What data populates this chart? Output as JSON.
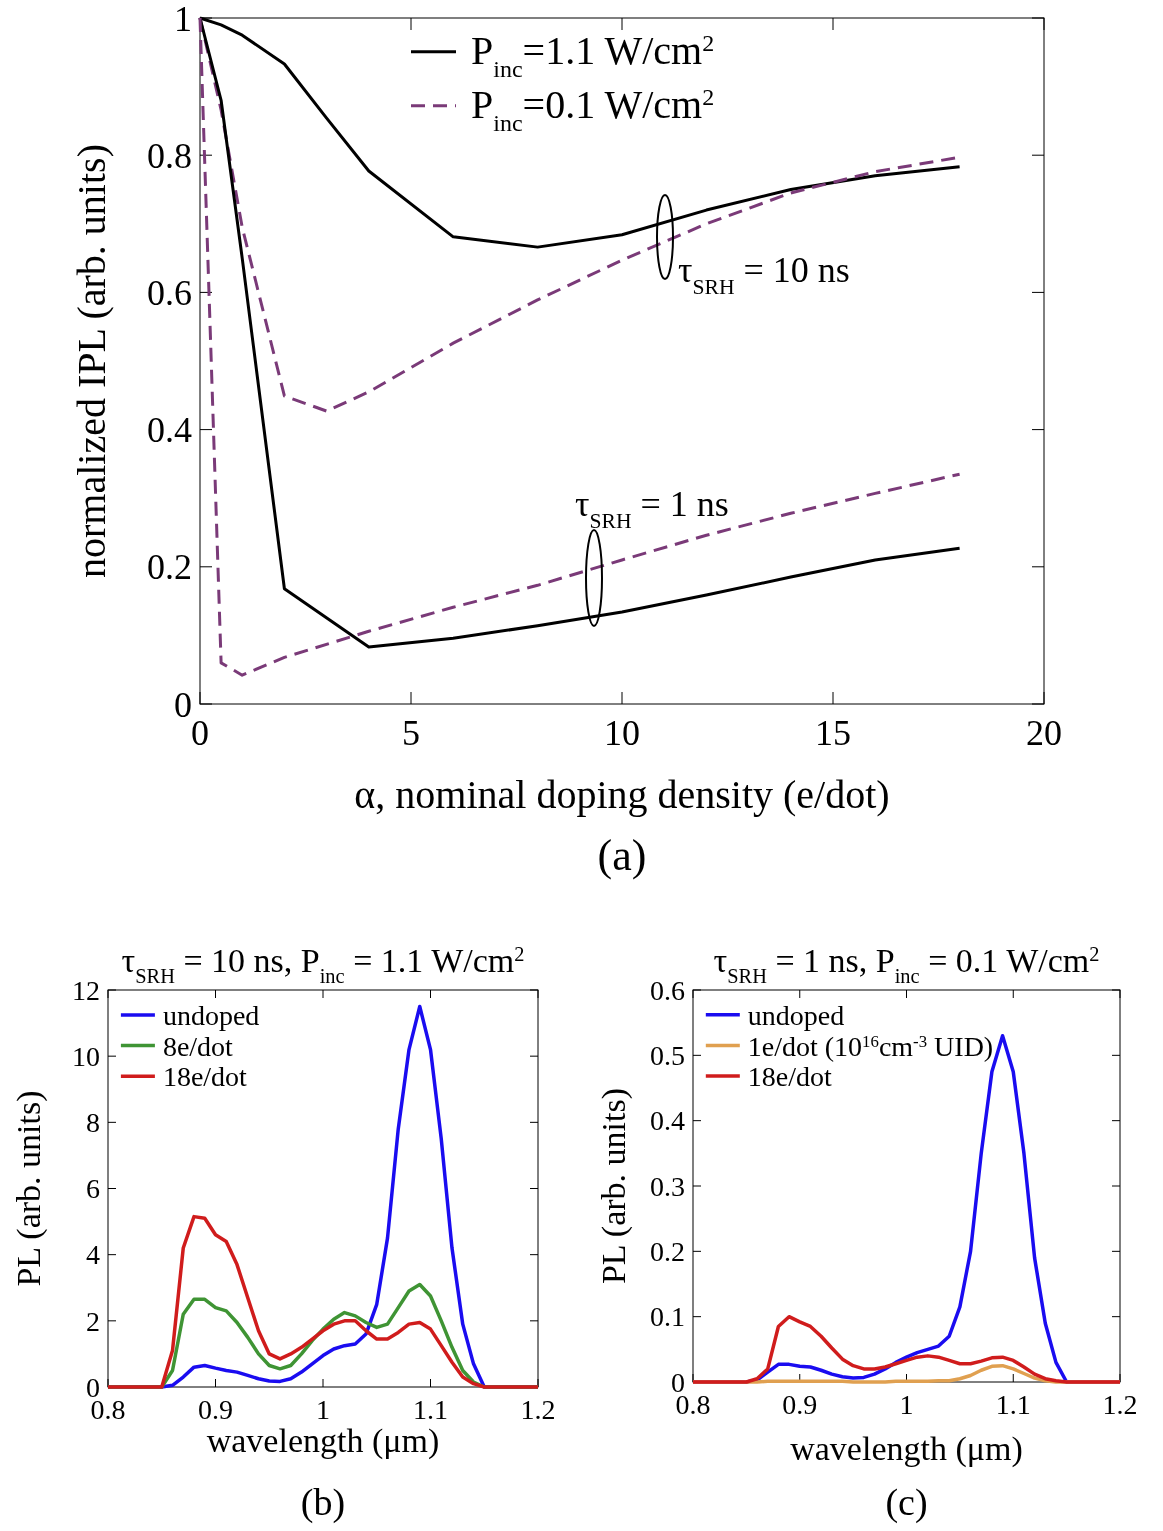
{
  "chart_data": [
    {
      "type": "line",
      "xlabel": "α, nominal doping density (e/dot)",
      "ylabel": "normalized IPL (arb. units)",
      "xlim": [
        0,
        20
      ],
      "ylim": [
        0,
        1
      ],
      "xticks": [
        0,
        5,
        10,
        15,
        20
      ],
      "yticks": [
        0,
        0.2,
        0.4,
        0.6,
        0.8,
        1
      ],
      "grid": false,
      "legend": "top",
      "annotations": [
        "τ$_{SRH}$ = 10 ns",
        "τ$_{SRH}$ = 1 ns",
        "(a)"
      ],
      "series": [
        {
          "name": "P$_{inc}$=1.1 W/cm$^{2}$",
          "color": "#000000",
          "line_style": "solid",
          "x": [
            0,
            0.5,
            1,
            2,
            3,
            4,
            6,
            8,
            10,
            12,
            14,
            16,
            18
          ],
          "values": [
            1,
            0.99,
            0.975,
            0.933,
            0.854,
            0.777,
            0.681,
            0.666,
            0.684,
            0.72,
            0.75,
            0.77,
            0.783
          ]
        },
        {
          "name": "P$_{inc}$=0.1 W/cm$^{2}$",
          "color": "#7a3a78",
          "line_style": "dashed",
          "x": [
            0,
            0.5,
            1,
            2,
            3,
            4,
            6,
            8,
            10,
            12,
            14,
            16,
            18
          ],
          "values": [
            1,
            0.866,
            0.695,
            0.449,
            0.427,
            0.455,
            0.526,
            0.589,
            0.647,
            0.7,
            0.745,
            0.776,
            0.797
          ]
        },
        {
          "color": "#000000",
          "line_style": "solid",
          "x": [
            0,
            0.5,
            1,
            2,
            4,
            6,
            8,
            10,
            12,
            14,
            16,
            18
          ],
          "values": [
            1,
            0.88,
            0.65,
            0.168,
            0.083,
            0.096,
            0.114,
            0.134,
            0.159,
            0.185,
            0.21,
            0.227
          ]
        },
        {
          "color": "#7a3a78",
          "line_style": "dashed",
          "x": [
            0,
            0.5,
            1,
            2,
            4,
            6,
            8,
            10,
            12,
            14,
            16,
            18
          ],
          "values": [
            1,
            0.06,
            0.042,
            0.068,
            0.106,
            0.141,
            0.173,
            0.21,
            0.246,
            0.278,
            0.307,
            0.335
          ]
        }
      ]
    },
    {
      "type": "line",
      "title": "τ$_{SRH}$ = 10 ns, P$_{inc}$ = 1.1 W/cm$^{2}$",
      "xlabel": "wavelength (μm)",
      "ylabel": "PL (arb. units)",
      "xlim": [
        0.8,
        1.2
      ],
      "ylim": [
        0,
        12
      ],
      "xticks": [
        0.8,
        0.9,
        1,
        1.1,
        1.2
      ],
      "yticks": [
        0,
        2,
        4,
        6,
        8,
        10,
        12
      ],
      "grid": false,
      "legend": "top left",
      "annotations": [
        "(b)"
      ],
      "x": [
        0.8,
        0.85,
        0.86,
        0.87,
        0.88,
        0.89,
        0.9,
        0.91,
        0.92,
        0.93,
        0.94,
        0.95,
        0.96,
        0.97,
        0.98,
        0.99,
        1.0,
        1.01,
        1.02,
        1.03,
        1.04,
        1.05,
        1.06,
        1.07,
        1.08,
        1.09,
        1.1,
        1.11,
        1.12,
        1.13,
        1.14,
        1.15,
        1.2
      ],
      "series": [
        {
          "name": "undoped",
          "color": "#1a0cf0",
          "values": [
            0,
            0,
            0.05,
            0.3,
            0.6,
            0.65,
            0.57,
            0.5,
            0.45,
            0.35,
            0.25,
            0.18,
            0.17,
            0.25,
            0.45,
            0.7,
            0.95,
            1.15,
            1.25,
            1.3,
            1.6,
            2.5,
            4.5,
            7.8,
            10.2,
            11.5,
            10.2,
            7.5,
            4.2,
            1.9,
            0.7,
            0,
            0
          ]
        },
        {
          "name": "8e/dot",
          "color": "#3f9434",
          "values": [
            0,
            0,
            0.5,
            2.2,
            2.65,
            2.65,
            2.4,
            2.3,
            1.95,
            1.5,
            1.0,
            0.65,
            0.55,
            0.65,
            1.0,
            1.4,
            1.75,
            2.05,
            2.25,
            2.15,
            1.95,
            1.8,
            1.9,
            2.4,
            2.9,
            3.1,
            2.75,
            2.0,
            1.2,
            0.5,
            0.15,
            0,
            0
          ]
        },
        {
          "name": "18e/dot",
          "color": "#d01c1c",
          "values": [
            0,
            0,
            1.1,
            4.2,
            5.15,
            5.1,
            4.6,
            4.4,
            3.7,
            2.7,
            1.7,
            1.0,
            0.85,
            1.0,
            1.2,
            1.45,
            1.7,
            1.9,
            2.0,
            2.0,
            1.7,
            1.45,
            1.45,
            1.65,
            1.9,
            1.95,
            1.75,
            1.25,
            0.75,
            0.3,
            0.1,
            0,
            0
          ]
        }
      ]
    },
    {
      "type": "line",
      "title": "τ$_{SRH}$ = 1 ns, P$_{inc}$ = 0.1 W/cm$^{2}$",
      "xlabel": "wavelength (μm)",
      "ylabel": "PL (arb. units)",
      "xlim": [
        0.8,
        1.2
      ],
      "ylim": [
        0,
        0.6
      ],
      "xticks": [
        0.8,
        0.9,
        1,
        1.1,
        1.2
      ],
      "yticks": [
        0,
        0.1,
        0.2,
        0.3,
        0.4,
        0.5,
        0.6
      ],
      "grid": false,
      "legend": "top left",
      "annotations": [
        "(c)"
      ],
      "x": [
        0.8,
        0.85,
        0.86,
        0.87,
        0.88,
        0.89,
        0.9,
        0.91,
        0.92,
        0.93,
        0.94,
        0.95,
        0.96,
        0.97,
        0.98,
        0.99,
        1.0,
        1.01,
        1.02,
        1.03,
        1.04,
        1.05,
        1.06,
        1.07,
        1.08,
        1.09,
        1.1,
        1.11,
        1.12,
        1.13,
        1.14,
        1.15,
        1.2
      ],
      "series": [
        {
          "name": "undoped",
          "color": "#1a0cf0",
          "values": [
            0,
            0,
            0.003,
            0.015,
            0.027,
            0.027,
            0.024,
            0.023,
            0.018,
            0.012,
            0.008,
            0.006,
            0.007,
            0.012,
            0.02,
            0.03,
            0.038,
            0.045,
            0.05,
            0.055,
            0.07,
            0.115,
            0.2,
            0.35,
            0.475,
            0.53,
            0.475,
            0.35,
            0.19,
            0.09,
            0.03,
            0,
            0
          ]
        },
        {
          "name": "1e/dot (10$^{16}$cm$^{-3}$ UID)",
          "color": "#e0a050",
          "values": [
            0,
            0,
            0,
            0.001,
            0.001,
            0.001,
            0.001,
            0.001,
            0.001,
            0.001,
            0.001,
            0,
            0,
            0,
            0,
            0.001,
            0.001,
            0.001,
            0.001,
            0.002,
            0.002,
            0.005,
            0.01,
            0.018,
            0.024,
            0.025,
            0.02,
            0.013,
            0.006,
            0.002,
            0,
            0,
            0
          ]
        },
        {
          "name": "18e/dot",
          "color": "#d01c1c",
          "values": [
            0,
            0,
            0.005,
            0.02,
            0.085,
            0.1,
            0.092,
            0.085,
            0.07,
            0.052,
            0.035,
            0.025,
            0.02,
            0.02,
            0.023,
            0.028,
            0.033,
            0.038,
            0.04,
            0.038,
            0.033,
            0.028,
            0.028,
            0.032,
            0.037,
            0.038,
            0.033,
            0.023,
            0.012,
            0.005,
            0.002,
            0,
            0
          ]
        }
      ]
    }
  ]
}
